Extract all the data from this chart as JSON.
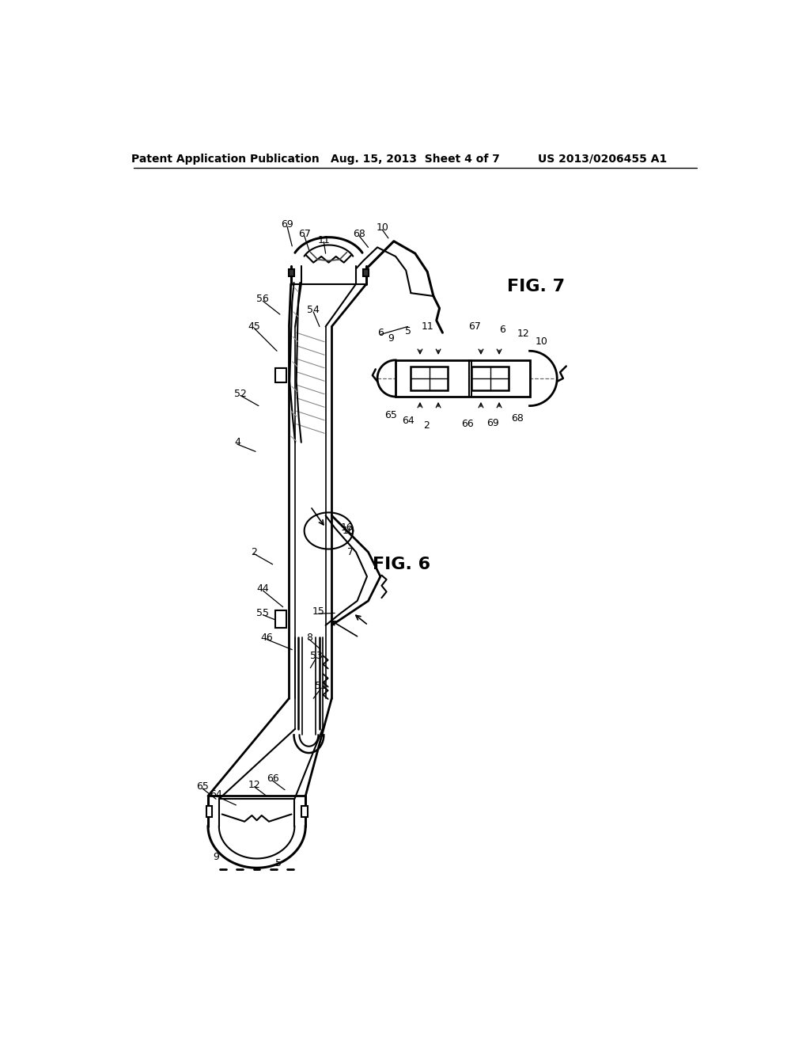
{
  "header_left": "Patent Application Publication",
  "header_center": "Aug. 15, 2013  Sheet 4 of 7",
  "header_right": "US 2013/0206455 A1",
  "fig6_label": "FIG. 6",
  "fig7_label": "FIG. 7",
  "bg_color": "#ffffff",
  "line_color": "#000000"
}
